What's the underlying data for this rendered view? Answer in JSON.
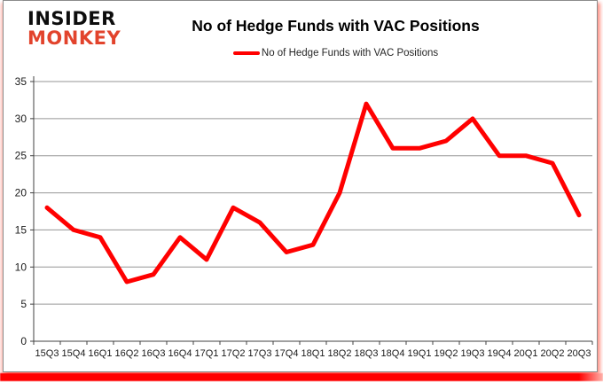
{
  "logo": {
    "line1": "INSIDER",
    "line2": "MONKEY"
  },
  "header": {
    "title": "No of Hedge Funds with VAC Positions"
  },
  "legend": {
    "label": "No of Hedge Funds with VAC Positions"
  },
  "colors": {
    "line": "#ff0000",
    "grid": "#969696",
    "axis": "#404040",
    "tick_label": "#1a1a1a",
    "logo_black": "#0d0d0d",
    "logo_red": "#e2432c",
    "frame_border": "#8c8c8c",
    "bottom_bar": "#ff0000"
  },
  "chart_data": {
    "type": "line",
    "title": "No of Hedge Funds with VAC Positions",
    "categories": [
      "15Q3",
      "15Q4",
      "16Q1",
      "16Q2",
      "16Q3",
      "16Q4",
      "17Q1",
      "17Q2",
      "17Q3",
      "17Q4",
      "18Q1",
      "18Q2",
      "18Q3",
      "18Q4",
      "19Q1",
      "19Q2",
      "19Q3",
      "19Q4",
      "20Q1",
      "20Q2",
      "20Q3"
    ],
    "series": [
      {
        "name": "No of Hedge Funds with VAC Positions",
        "values": [
          18,
          15,
          14,
          8,
          9,
          14,
          11,
          18,
          16,
          12,
          13,
          20,
          32,
          26,
          26,
          27,
          30,
          25,
          25,
          24,
          17
        ]
      }
    ],
    "xlabel": "",
    "ylabel": "",
    "ylim": [
      0,
      35
    ],
    "ytick_step": 5,
    "grid": "horizontal",
    "legend_position": "top-center"
  }
}
